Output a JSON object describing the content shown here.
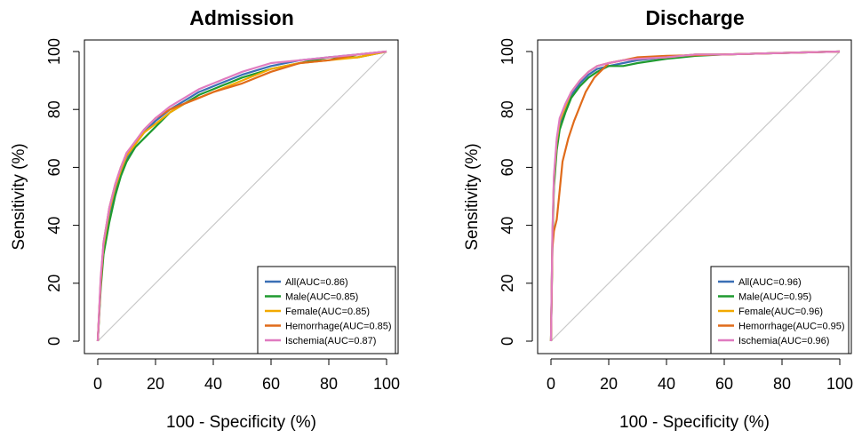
{
  "chart_data": [
    {
      "type": "line",
      "title": "Admission",
      "xlabel": "100 - Specificity (%)",
      "ylabel": "Sensitivity (%)",
      "xlim": [
        0,
        100
      ],
      "ylim": [
        0,
        100
      ],
      "xticks": [
        0,
        20,
        40,
        60,
        80,
        100
      ],
      "yticks": [
        0,
        20,
        40,
        60,
        80,
        100
      ],
      "x_tick_labels": [
        "0",
        "20",
        "40",
        "60",
        "80",
        "100"
      ],
      "y_tick_labels": [
        "0",
        "20",
        "40",
        "60",
        "80",
        "100"
      ],
      "legend_position": "bottom-right",
      "diagonal_reference": true,
      "grid": false,
      "series": [
        {
          "name": "All(AUC=0.86)",
          "color": "#3a6fb5",
          "x": [
            0,
            1,
            2,
            4,
            6,
            8,
            10,
            13,
            16,
            20,
            25,
            30,
            35,
            40,
            50,
            60,
            70,
            80,
            90,
            100
          ],
          "y": [
            0,
            20,
            32,
            44,
            52,
            58,
            63,
            68,
            72,
            76,
            80,
            83,
            86,
            88,
            92,
            95,
            97,
            98,
            99,
            100
          ]
        },
        {
          "name": "Male(AUC=0.85)",
          "color": "#1f9a2f",
          "x": [
            0,
            1,
            2,
            4,
            6,
            8,
            10,
            13,
            16,
            20,
            25,
            30,
            35,
            40,
            50,
            60,
            70,
            80,
            90,
            100
          ],
          "y": [
            0,
            18,
            30,
            41,
            50,
            57,
            62,
            67,
            70,
            74,
            79,
            82,
            85,
            87,
            91,
            94,
            96,
            98,
            98,
            100
          ]
        },
        {
          "name": "Female(AUC=0.85)",
          "color": "#f2a900",
          "x": [
            0,
            1,
            2,
            4,
            6,
            8,
            10,
            13,
            16,
            20,
            25,
            30,
            35,
            40,
            50,
            60,
            70,
            80,
            90,
            100
          ],
          "y": [
            0,
            21,
            33,
            45,
            53,
            59,
            64,
            68,
            72,
            75,
            79,
            82,
            84,
            86,
            90,
            94,
            96,
            97,
            98,
            100
          ]
        },
        {
          "name": "Hemorrhage(AUC=0.85)",
          "color": "#e06b1a",
          "x": [
            0,
            1,
            2,
            4,
            6,
            8,
            10,
            13,
            16,
            20,
            25,
            30,
            35,
            40,
            50,
            60,
            70,
            80,
            90,
            100
          ],
          "y": [
            0,
            20,
            34,
            46,
            54,
            60,
            65,
            69,
            73,
            77,
            80,
            82,
            84,
            86,
            89,
            93,
            96,
            97,
            99,
            100
          ]
        },
        {
          "name": "Ischemia(AUC=0.87)",
          "color": "#e07bc0",
          "x": [
            0,
            1,
            2,
            4,
            6,
            8,
            10,
            13,
            16,
            20,
            25,
            30,
            35,
            40,
            50,
            60,
            70,
            80,
            90,
            100
          ],
          "y": [
            0,
            22,
            34,
            46,
            54,
            60,
            65,
            69,
            73,
            77,
            81,
            84,
            87,
            89,
            93,
            96,
            97,
            98,
            99,
            100
          ]
        }
      ]
    },
    {
      "type": "line",
      "title": "Discharge",
      "xlabel": "100 - Specificity (%)",
      "ylabel": "Sensitivity (%)",
      "xlim": [
        0,
        100
      ],
      "ylim": [
        0,
        100
      ],
      "xticks": [
        0,
        20,
        40,
        60,
        80,
        100
      ],
      "yticks": [
        0,
        20,
        40,
        60,
        80,
        100
      ],
      "x_tick_labels": [
        "0",
        "20",
        "40",
        "60",
        "80",
        "100"
      ],
      "y_tick_labels": [
        "0",
        "20",
        "40",
        "60",
        "80",
        "100"
      ],
      "legend_position": "bottom-right",
      "diagonal_reference": true,
      "grid": false,
      "series": [
        {
          "name": "All(AUC=0.96)",
          "color": "#3a6fb5",
          "x": [
            0,
            0.5,
            1,
            2,
            3,
            5,
            7,
            10,
            13,
            16,
            20,
            25,
            30,
            40,
            50,
            60,
            80,
            100
          ],
          "y": [
            0,
            35,
            55,
            68,
            75,
            80,
            85,
            89,
            92,
            94,
            95,
            96,
            97,
            98,
            99,
            99,
            99.5,
            100
          ]
        },
        {
          "name": "Male(AUC=0.95)",
          "color": "#1f9a2f",
          "x": [
            0,
            0.5,
            1,
            2,
            3,
            5,
            7,
            10,
            13,
            16,
            20,
            25,
            30,
            40,
            50,
            60,
            80,
            100
          ],
          "y": [
            0,
            33,
            53,
            66,
            73,
            79,
            84,
            88,
            91,
            93,
            95,
            95,
            96,
            97.5,
            98.5,
            99,
            99.5,
            100
          ]
        },
        {
          "name": "Female(AUC=0.96)",
          "color": "#f2a900",
          "x": [
            0,
            0.5,
            1,
            2,
            3,
            5,
            7,
            10,
            13,
            16,
            20,
            25,
            30,
            40,
            50,
            60,
            80,
            100
          ],
          "y": [
            0,
            36,
            56,
            69,
            76,
            81,
            86,
            90,
            93,
            95,
            96,
            97,
            97.5,
            98,
            99,
            99,
            99.5,
            100
          ]
        },
        {
          "name": "Hemorrhage(AUC=0.95)",
          "color": "#e06b1a",
          "x": [
            0,
            0.5,
            1,
            2,
            3,
            4,
            6,
            8,
            10,
            12,
            15,
            18,
            20,
            25,
            30,
            40,
            60,
            80,
            100
          ],
          "y": [
            0,
            32,
            38,
            42,
            52,
            62,
            70,
            76,
            81,
            86,
            91,
            94,
            96,
            97,
            98,
            98.5,
            99,
            99.5,
            100
          ]
        },
        {
          "name": "Ischemia(AUC=0.96)",
          "color": "#e07bc0",
          "x": [
            0,
            0.5,
            1,
            2,
            3,
            5,
            7,
            10,
            13,
            16,
            20,
            25,
            30,
            40,
            50,
            60,
            80,
            100
          ],
          "y": [
            0,
            37,
            57,
            70,
            77,
            82,
            86,
            90,
            93,
            95,
            96,
            97,
            97.5,
            98,
            99,
            99,
            99.5,
            100
          ]
        }
      ]
    }
  ]
}
